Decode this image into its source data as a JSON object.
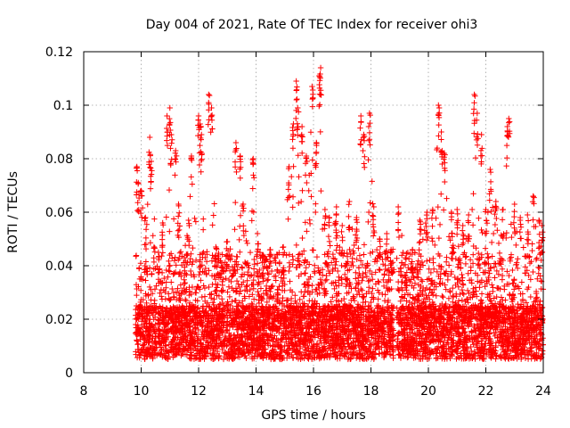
{
  "chart_data": {
    "type": "scatter",
    "title": "Day 004 of 2021, Rate Of TEC Index for receiver ohi3",
    "xlabel": "GPS time / hours",
    "ylabel": "ROTI / TECUs",
    "xlim": [
      8,
      24
    ],
    "ylim": [
      0,
      0.12
    ],
    "xticks": [
      "8",
      "10",
      "12",
      "14",
      "16",
      "18",
      "20",
      "22",
      "24"
    ],
    "yticks": [
      "0",
      "0.02",
      "0.04",
      "0.06",
      "0.08",
      "0.1",
      "0.12"
    ],
    "grid": true,
    "marker": "+",
    "color": "#ff0000",
    "coverage": [
      [
        9.8,
        18.8
      ],
      [
        18.9,
        24.0
      ]
    ],
    "series": [
      {
        "name": "ROTI",
        "x": [
          9.85,
          9.9,
          10.0,
          10.15,
          10.3,
          10.35,
          10.45,
          10.6,
          10.75,
          10.9,
          11.0,
          11.05,
          11.2,
          11.3,
          11.5,
          11.65,
          11.75,
          12.0,
          12.05,
          12.1,
          12.35,
          12.45,
          12.6,
          12.8,
          13.0,
          13.3,
          13.45,
          13.55,
          13.7,
          13.9,
          14.05,
          14.25,
          14.5,
          14.75,
          14.95,
          15.15,
          15.3,
          15.4,
          15.45,
          15.6,
          15.75,
          15.95,
          16.1,
          16.2,
          16.25,
          16.4,
          16.55,
          16.8,
          17.0,
          17.25,
          17.5,
          17.65,
          17.75,
          17.95,
          18.1,
          18.3,
          18.55,
          18.7,
          18.95,
          19.2,
          19.45,
          19.7,
          19.95,
          20.15,
          20.35,
          20.45,
          20.55,
          20.8,
          21.0,
          21.2,
          21.4,
          21.6,
          21.7,
          21.85,
          22.0,
          22.15,
          22.35,
          22.6,
          22.75,
          22.8,
          23.0,
          23.2,
          23.45,
          23.65,
          23.85,
          23.95
        ],
        "y": [
          0.077,
          0.071,
          0.068,
          0.058,
          0.088,
          0.079,
          0.047,
          0.045,
          0.056,
          0.096,
          0.099,
          0.089,
          0.083,
          0.063,
          0.043,
          0.057,
          0.081,
          0.096,
          0.093,
          0.089,
          0.104,
          0.099,
          0.047,
          0.041,
          0.049,
          0.086,
          0.081,
          0.063,
          0.041,
          0.08,
          0.052,
          0.044,
          0.046,
          0.038,
          0.047,
          0.077,
          0.093,
          0.109,
          0.099,
          0.092,
          0.081,
          0.107,
          0.086,
          0.111,
          0.114,
          0.061,
          0.058,
          0.062,
          0.055,
          0.064,
          0.058,
          0.096,
          0.089,
          0.097,
          0.062,
          0.05,
          0.052,
          0.046,
          0.062,
          0.043,
          0.046,
          0.057,
          0.06,
          0.061,
          0.1,
          0.09,
          0.082,
          0.06,
          0.061,
          0.055,
          0.059,
          0.104,
          0.097,
          0.089,
          0.061,
          0.076,
          0.064,
          0.061,
          0.092,
          0.095,
          0.063,
          0.058,
          0.059,
          0.066,
          0.057,
          0.055
        ]
      }
    ]
  }
}
